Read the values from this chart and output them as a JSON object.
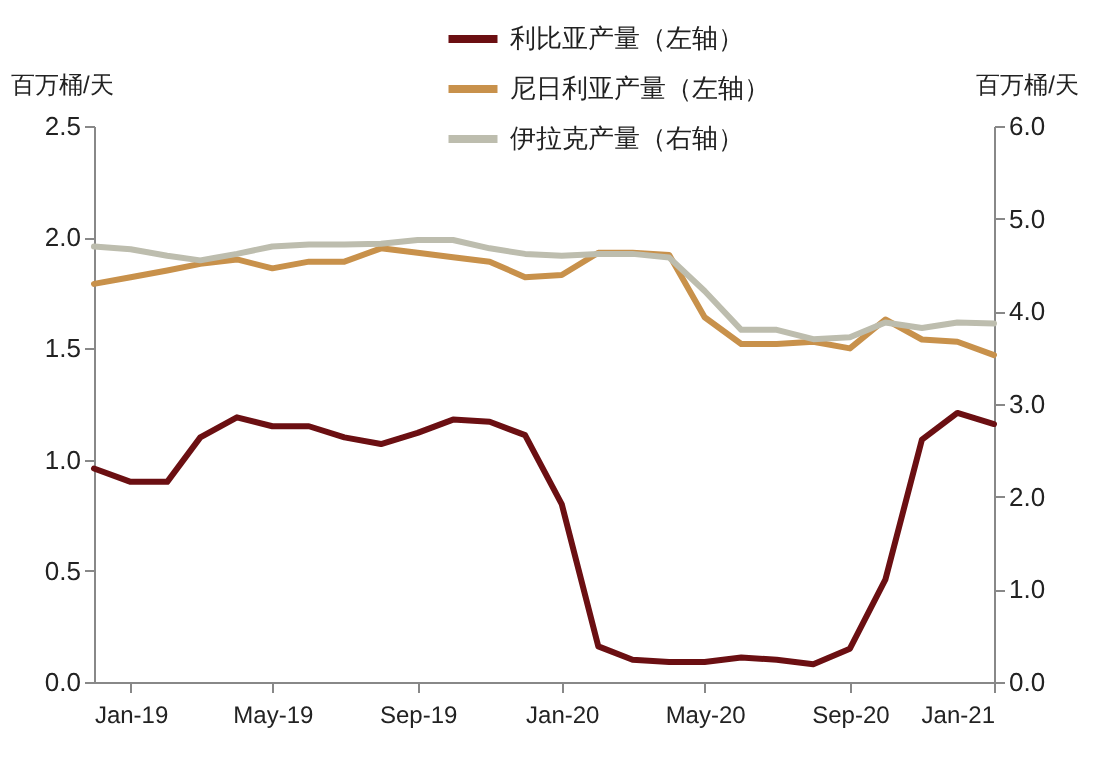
{
  "chart_data": {
    "type": "line",
    "x": [
      "2018-12",
      "2019-01",
      "2019-02",
      "2019-03",
      "2019-04",
      "2019-05",
      "2019-06",
      "2019-07",
      "2019-08",
      "2019-09",
      "2019-10",
      "2019-11",
      "2019-12",
      "2020-01",
      "2020-02",
      "2020-03",
      "2020-04",
      "2020-05",
      "2020-06",
      "2020-07",
      "2020-08",
      "2020-09",
      "2020-10",
      "2020-11",
      "2020-12",
      "2021-01"
    ],
    "series": [
      {
        "name": "利比亚产量（左轴）",
        "color": "#6b0f12",
        "values": [
          0.96,
          0.9,
          0.9,
          1.1,
          1.19,
          1.15,
          1.15,
          1.1,
          1.07,
          1.12,
          1.18,
          1.17,
          1.11,
          0.8,
          0.16,
          0.1,
          0.09,
          0.09,
          0.11,
          0.1,
          0.08,
          0.15,
          0.46,
          1.09,
          1.21,
          1.16
        ]
      },
      {
        "name": "尼日利亚产量（左轴）",
        "color": "#c8914b",
        "values": [
          1.79,
          1.82,
          1.85,
          1.88,
          1.9,
          1.86,
          1.89,
          1.89,
          1.95,
          1.93,
          1.91,
          1.89,
          1.82,
          1.83,
          1.93,
          1.93,
          1.92,
          1.64,
          1.52,
          1.52,
          1.53,
          1.5,
          1.63,
          1.54,
          1.53,
          1.47
        ]
      },
      {
        "name": "伊拉克产量（右轴）",
        "color": "#bdbdae",
        "axis": "y2",
        "values": [
          4.7,
          4.67,
          4.6,
          4.55,
          4.62,
          4.7,
          4.72,
          4.72,
          4.73,
          4.77,
          4.77,
          4.68,
          4.62,
          4.6,
          4.62,
          4.62,
          4.58,
          4.22,
          3.8,
          3.8,
          3.7,
          3.72,
          3.88,
          3.82,
          3.88,
          3.87
        ]
      }
    ],
    "ylabel": "百万桶/天",
    "y2label": "百万桶/天",
    "xlim": [
      "2018-12",
      "2021-01"
    ],
    "xticks": [
      {
        "value": "2019-01",
        "label": "Jan-19"
      },
      {
        "value": "2019-05",
        "label": "May-19"
      },
      {
        "value": "2019-09",
        "label": "Sep-19"
      },
      {
        "value": "2020-01",
        "label": "Jan-20"
      },
      {
        "value": "2020-05",
        "label": "May-20"
      },
      {
        "value": "2020-09",
        "label": "Sep-20"
      },
      {
        "value": "2021-01",
        "label": "Jan-21"
      }
    ],
    "ylim": [
      0,
      2.5
    ],
    "yticks": [
      {
        "value": 0,
        "label": "0.0"
      },
      {
        "value": 0.5,
        "label": "0.5"
      },
      {
        "value": 1,
        "label": "1.0"
      },
      {
        "value": 1.5,
        "label": "1.5"
      },
      {
        "value": 2,
        "label": "2.0"
      },
      {
        "value": 2.5,
        "label": "2.5"
      }
    ],
    "y2lim": [
      0,
      6
    ],
    "y2ticks": [
      {
        "value": 0,
        "label": "0.0"
      },
      {
        "value": 1,
        "label": "1.0"
      },
      {
        "value": 2,
        "label": "2.0"
      },
      {
        "value": 3,
        "label": "3.0"
      },
      {
        "value": 4,
        "label": "4.0"
      },
      {
        "value": 5,
        "label": "5.0"
      },
      {
        "value": 6,
        "label": "6.0"
      }
    ],
    "legend": "top",
    "grid": false,
    "marker": "none",
    "line_style": "solid"
  }
}
